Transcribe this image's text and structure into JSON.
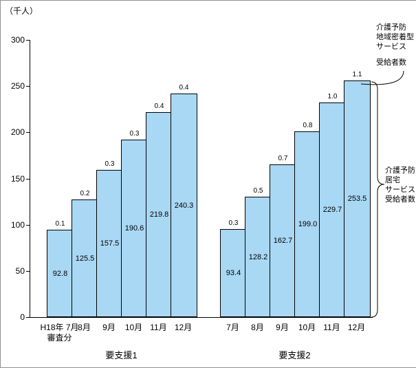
{
  "unit": "（千人）",
  "annotations": {
    "top_right": [
      "介護予防",
      "地域密着型",
      "サービス",
      "受給者数"
    ],
    "mid_right": [
      "介護予防",
      "居宅",
      "サービス",
      "受給者数"
    ]
  },
  "chart_data": {
    "type": "bar",
    "stacked": true,
    "title": "",
    "ylabel": "（千人）",
    "ylim": [
      0,
      300
    ],
    "yticks": [
      0,
      50,
      100,
      150,
      200,
      250,
      300
    ],
    "grid": false,
    "bar_color": "#a9d8f5",
    "series_names": [
      "介護予防居宅サービス受給者数",
      "介護予防地域密着型サービス受給者数"
    ],
    "groups": [
      {
        "label": "要支援1",
        "categories": [
          "H18年 7月\n審査分",
          "8月",
          "9月",
          "10月",
          "11月",
          "12月"
        ],
        "home_service": [
          92.8,
          125.5,
          157.5,
          190.6,
          219.8,
          240.3
        ],
        "community_service": [
          0.1,
          0.2,
          0.3,
          0.3,
          0.4,
          0.4
        ]
      },
      {
        "label": "要支援2",
        "categories": [
          "7月",
          "8月",
          "9月",
          "10月",
          "11月",
          "12月"
        ],
        "home_service": [
          93.4,
          128.2,
          162.7,
          199.0,
          229.7,
          253.5
        ],
        "community_service": [
          0.3,
          0.5,
          0.7,
          0.8,
          1.0,
          1.1
        ]
      }
    ]
  }
}
